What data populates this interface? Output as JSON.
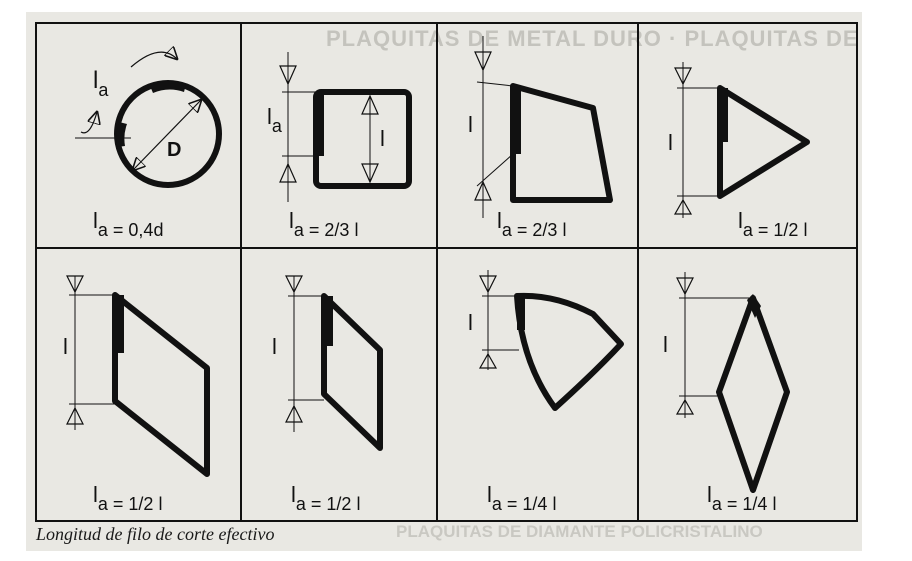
{
  "caption": "Longitud de filo de corte efectivo",
  "background_text": {
    "top": "PLAQUITAS DE METAL DURO  ·  PLAQUITAS DE RETENDO DE ROMOMBRAS",
    "bottom": "PLAQUITAS DE DIAMANTE POLICRISTALINO"
  },
  "label_D": "D",
  "cells": [
    {
      "main": "l",
      "sub": "a = 0,4d",
      "side_top": "l",
      "side_sub": "a"
    },
    {
      "main": "l",
      "sub": "a = 2/3 l",
      "side_top": "l",
      "side_sub": "a",
      "side_inner": "l"
    },
    {
      "main": "l",
      "sub": "a = 2/3 l",
      "side_label": "l"
    },
    {
      "main": "l",
      "sub": "a = 1/2 l",
      "side_label": "l"
    },
    {
      "main": "l",
      "sub": "a = 1/2 l",
      "side_label": "l"
    },
    {
      "main": "l",
      "sub": "a = 1/2 l",
      "side_label": "l"
    },
    {
      "main": "l",
      "sub": "a = 1/4 l",
      "side_label": "l"
    },
    {
      "main": "l",
      "sub": "a = 1/4 l",
      "side_label": "l"
    }
  ],
  "colors": {
    "ink": "#111111",
    "paper": "#e9e8e3",
    "ghost": "#c4c3bd"
  }
}
